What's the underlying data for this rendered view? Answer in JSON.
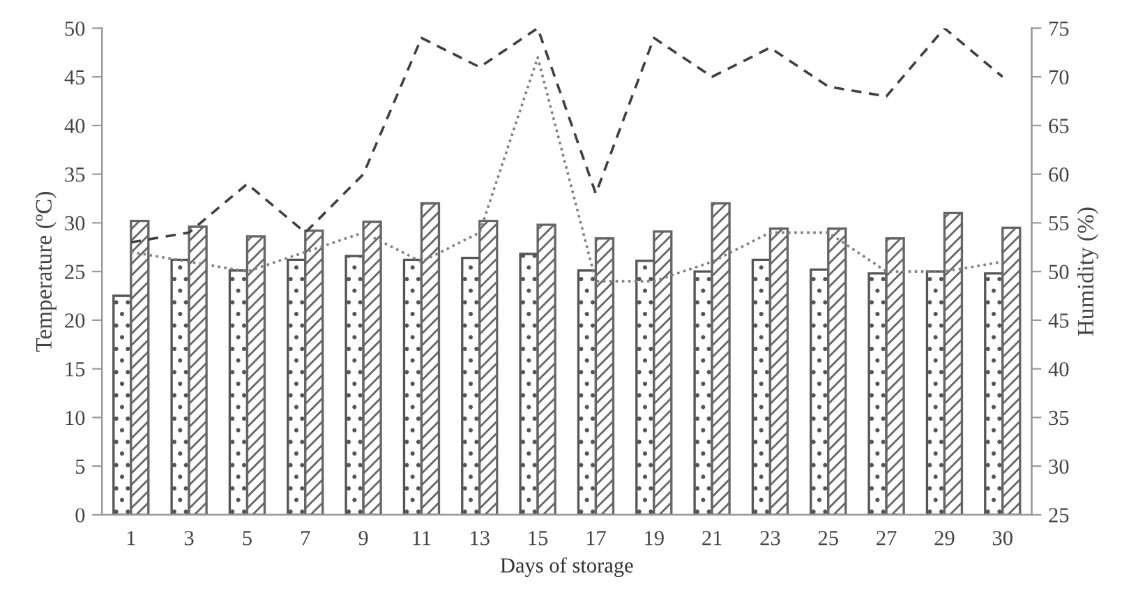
{
  "chart_data": {
    "type": "bar",
    "xlabel": "Days of storage",
    "ylabel": "Temperature (ºC)",
    "y2label": "Humidity (%)",
    "categories": [
      "1",
      "3",
      "5",
      "7",
      "9",
      "11",
      "13",
      "15",
      "17",
      "19",
      "21",
      "23",
      "25",
      "27",
      "29",
      "30"
    ],
    "series": [
      {
        "color": "#555555",
        "values": [
          22.5,
          26.2,
          25.1,
          26.2,
          26.6,
          26.2,
          26.4,
          26.8,
          25.1,
          26.1,
          25.0,
          26.2,
          25.2,
          24.8,
          25.0,
          24.8
        ]
      },
      {
        "color": "#666666",
        "values": [
          30.2,
          29.6,
          28.6,
          29.2,
          30.1,
          32.0,
          30.2,
          29.8,
          28.4,
          29.1,
          32.0,
          29.4,
          29.4,
          28.4,
          31.0,
          29.5
        ]
      },
      {
        "type": "line",
        "axis": "y2",
        "color": "#404040",
        "line_style": "dashed",
        "values": [
          53,
          54,
          59,
          54,
          60,
          74,
          71,
          75,
          58,
          74,
          70,
          73,
          69,
          68,
          75,
          70
        ]
      },
      {
        "type": "line",
        "axis": "y2",
        "color": "#808080",
        "line_style": "dotted",
        "values": [
          52,
          51,
          50,
          52,
          54,
          51,
          54,
          72,
          49,
          49,
          51,
          54,
          54,
          50,
          50,
          51
        ]
      }
    ],
    "ylim": [
      0,
      50
    ],
    "yticks": [
      0,
      5,
      10,
      15,
      20,
      25,
      30,
      35,
      40,
      45,
      50
    ],
    "y2lim": [
      25,
      75
    ],
    "y2ticks": [
      25,
      30,
      35,
      40,
      45,
      50,
      55,
      60,
      65,
      70,
      75
    ],
    "grid": false,
    "legend": false
  }
}
